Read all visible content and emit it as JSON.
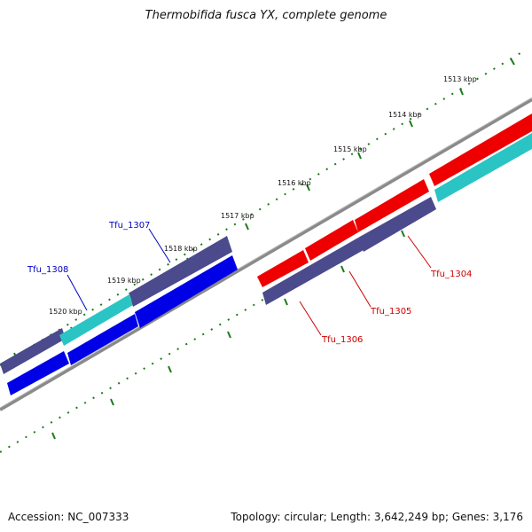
{
  "title": "Thermobifida fusca YX, complete genome",
  "accession_label": "Accession: NC_007333",
  "topology_info": "Topology: circular; Length: 3,642,249 bp; Genes: 3,176",
  "colors": {
    "backbone": "#808080",
    "tick": "#1a7a1a",
    "dark_blue_gene": "#4a4a8c",
    "blue_gene": "#0000e6",
    "cyan_gene": "#2bc4c4",
    "red_gene": "#ee0000",
    "blue_label": "#0000c0",
    "red_label": "#cc0000"
  },
  "ticks": [
    "1513 kbp",
    "1514 kbp",
    "1515 kbp",
    "1516 kbp",
    "1517 kbp",
    "1518 kbp",
    "1519 kbp",
    "1520 kbp"
  ],
  "gene_labels": {
    "tfu_1304": "Tfu_1304",
    "tfu_1305": "Tfu_1305",
    "tfu_1306": "Tfu_1306",
    "tfu_1307": "Tfu_1307",
    "tfu_1308": "Tfu_1308"
  }
}
